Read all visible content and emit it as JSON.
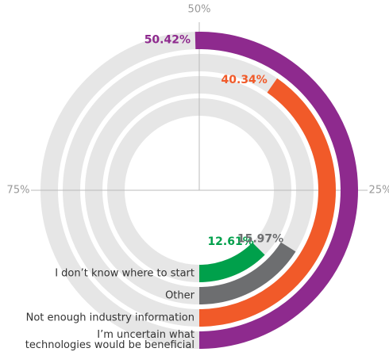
{
  "chart_data": {
    "type": "radial-bar",
    "categories": [
      "I don’t know where to start",
      "Other",
      "Not enough industry information",
      "I’m uncertain what\ntechnologies would be beneficial"
    ],
    "values": [
      12.61,
      15.97,
      40.34,
      50.42
    ],
    "value_labels": [
      "12.61%",
      "15.97%",
      "40.34%",
      "50.42%"
    ],
    "colors": [
      "#00a04b",
      "#6d6e70",
      "#f15a29",
      "#8e2a8e"
    ],
    "lim": [
      0,
      100
    ],
    "ticks": [
      {
        "value": 25,
        "label": "25%"
      },
      {
        "value": 50,
        "label": "50%"
      },
      {
        "value": 75,
        "label": "75%"
      }
    ]
  }
}
